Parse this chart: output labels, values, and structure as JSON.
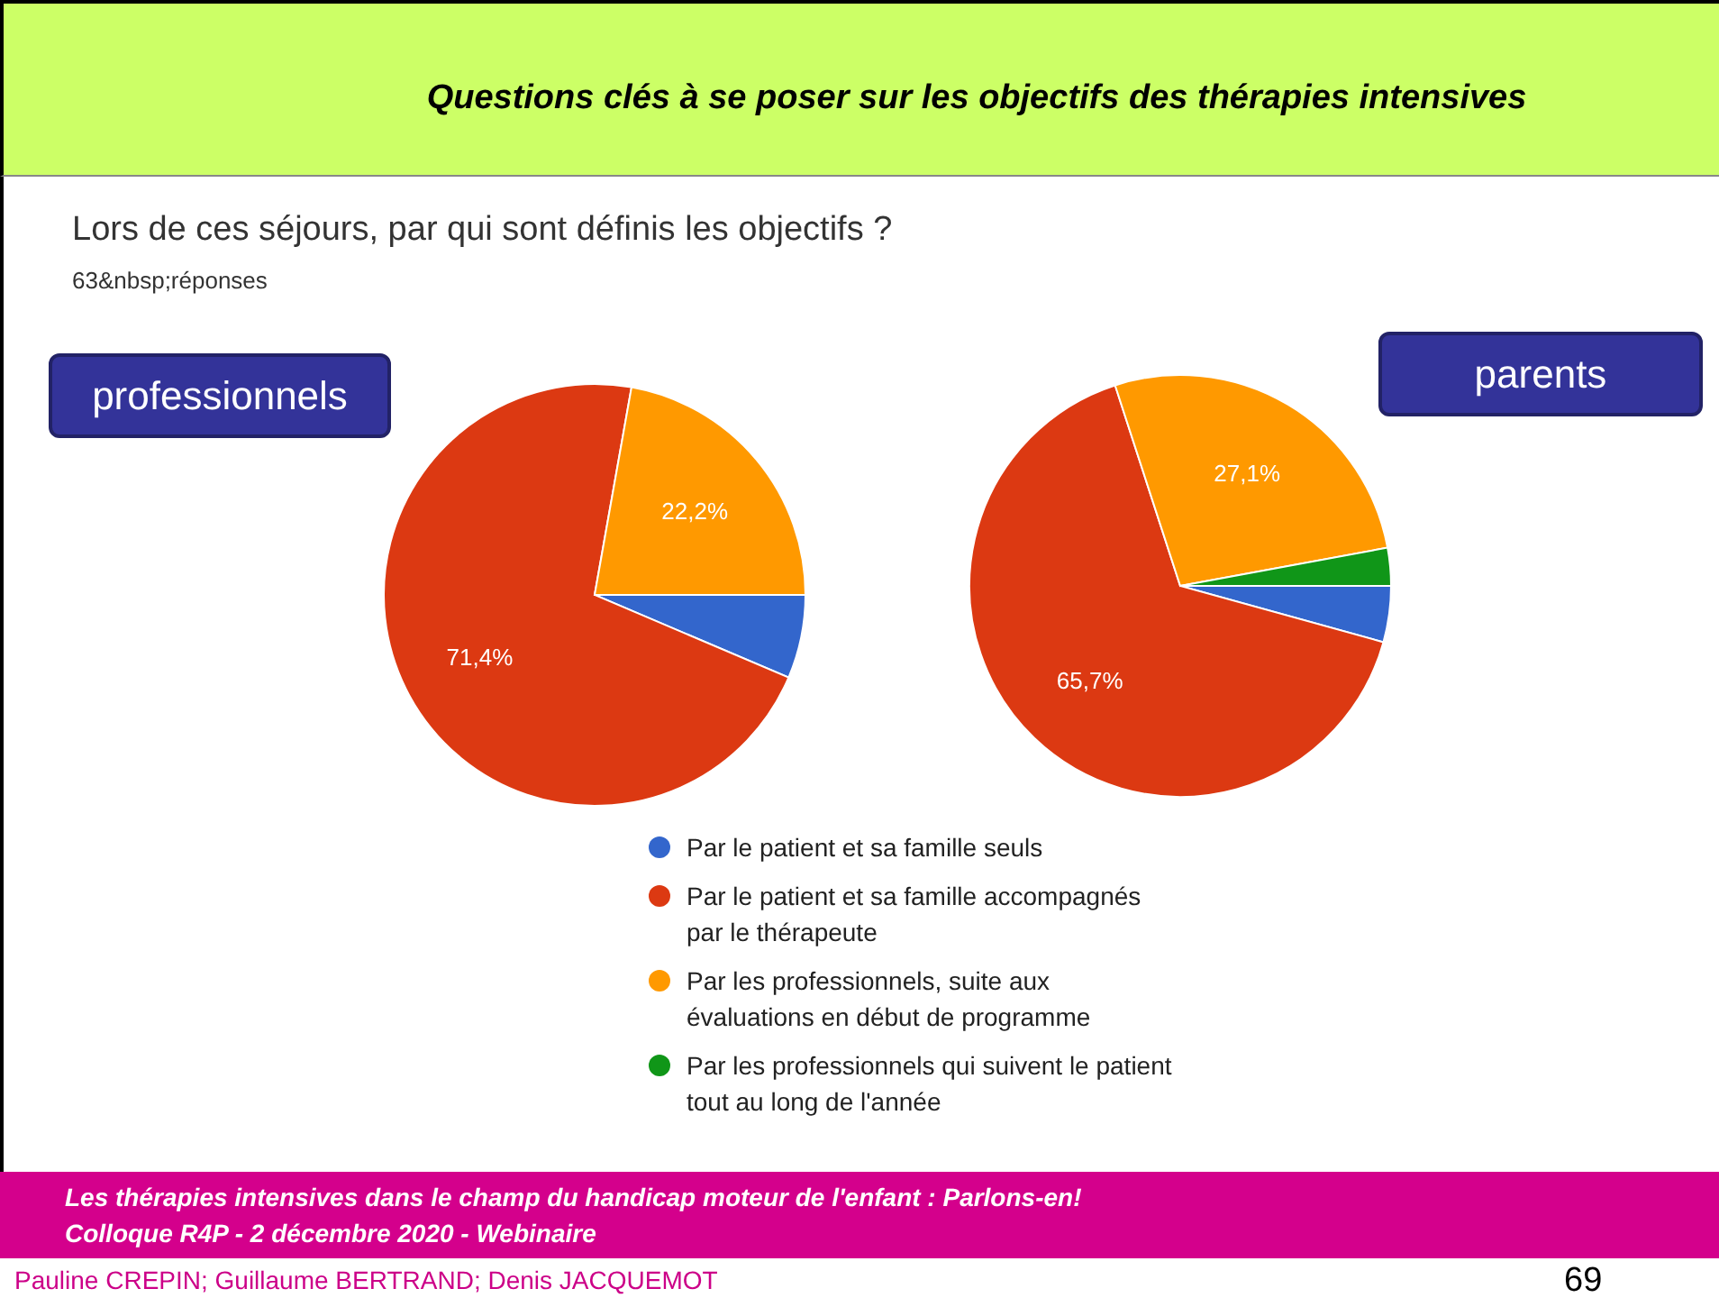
{
  "chart_data": [
    {
      "type": "pie",
      "title": "professionnels",
      "categories": [
        "Par le patient et sa famille seuls",
        "Par le patient et sa famille accompagnés par le thérapeute",
        "Par les professionnels, suite aux évaluations en début de programme",
        "Par les professionnels qui suivent le patient tout au long de l'année"
      ],
      "values": [
        6.4,
        71.4,
        22.2,
        0
      ],
      "colors": [
        "#3366cc",
        "#dc3912",
        "#ff9900",
        "#109618"
      ],
      "value_labels": [
        null,
        "71,4%",
        "22,2%",
        null
      ],
      "legend": "bottom",
      "annotations": [
        "Questions clés à se poser sur les objectifs des thérapies intensives",
        "Lors de ces séjours, par qui sont définis les objectifs ?",
        "63&nbsp;réponses",
        "Les thérapies intensives dans le champ du handicap moteur de l'enfant : Parlons-en!",
        "Colloque R4P - 2 décembre 2020 - Webinaire",
        "Pauline CREPIN; Guillaume BERTRAND; Denis JACQUEMOT",
        "69"
      ]
    },
    {
      "type": "pie",
      "title": "parents",
      "categories": [
        null,
        null,
        null,
        null
      ],
      "values": [
        4.3,
        65.7,
        27.1,
        2.9
      ],
      "colors": [
        "#3366cc",
        "#dc3912",
        "#ff9900",
        "#109618"
      ],
      "value_labels": [
        null,
        "65,7%",
        "27,1%",
        null
      ]
    }
  ]
}
